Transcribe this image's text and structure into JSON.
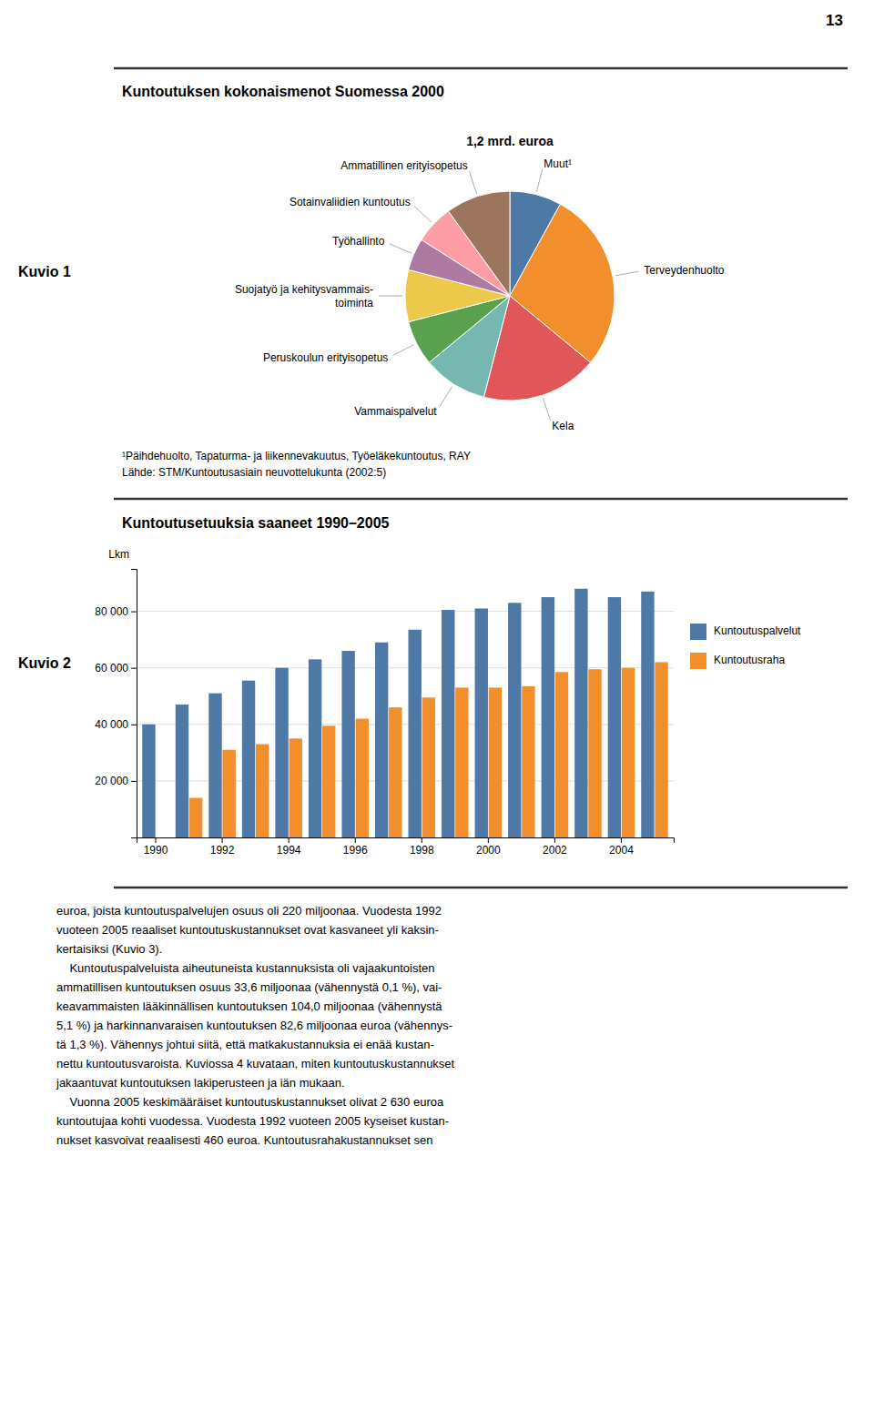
{
  "page_number": "13",
  "chart_data": [
    {
      "type": "pie",
      "title": "Kuntoutuksen kokonaismenot Suomessa 2000",
      "subtitle": "1,2 mrd. euroa",
      "annotations": [
        "Kuvio 1",
        "¹Päihdehuolto, Tapaturma- ja liikennevakuutus, Työeläkekuntoutus, RAY",
        "Lähde: STM/Kuntoutusasiain neuvottelukunta (2002:5)"
      ],
      "categories": [
        "Muut¹",
        "Terveydenhuolto",
        "Kela",
        "Vammaispalvelut",
        "Peruskoulun erityisopetus",
        "Suojatyö ja kehitysvammais-\ntoiminta",
        "Työhallinto",
        "Sotainvaliidien kuntoutus",
        "Ammatillinen erityisopetus"
      ],
      "values": [
        8,
        28,
        18,
        10,
        7,
        8,
        5,
        6,
        10
      ]
    },
    {
      "type": "bar",
      "title": "Kuntoutusetuuksia saaneet 1990–2005",
      "annotations": [
        "Kuvio 2"
      ],
      "ylabel": "Lkm",
      "categories": [
        "1990",
        null,
        "1992",
        null,
        "1994",
        null,
        "1996",
        null,
        "1998",
        null,
        "2000",
        null,
        "2002",
        null,
        "2004",
        null
      ],
      "series": [
        {
          "name": "Kuntoutuspalvelut",
          "values": [
            40000,
            47000,
            51000,
            55500,
            60000,
            63000,
            66000,
            69000,
            73500,
            80500,
            81000,
            83000,
            85000,
            88000,
            85000,
            87000
          ]
        },
        {
          "name": "Kuntoutusraha",
          "values": [
            0,
            14000,
            31000,
            33000,
            35000,
            39500,
            42000,
            46000,
            49500,
            53000,
            53000,
            53500,
            58500,
            59500,
            60000,
            62000
          ]
        }
      ],
      "ylim": [
        0,
        95000
      ],
      "yticks": [
        {
          "value": 20000,
          "label": "20 000"
        },
        {
          "value": 40000,
          "label": "40 000"
        },
        {
          "value": 60000,
          "label": "60 000"
        },
        {
          "value": 80000,
          "label": "80 000"
        }
      ],
      "grid": true,
      "legend": "right"
    }
  ],
  "text": [
    "euroa, joista kuntoutuspalvelujen osuus oli 220 miljoonaa. Vuodesta 1992",
    "vuoteen 2005 reaaliset kuntoutuskustannukset ovat kasvaneet yli kaksin-",
    "kertaisiksi (Kuvio 3).",
    "    Kuntoutuspalveluista aiheutuneista kustannuksista oli vajaakuntoisten",
    "ammatillisen kuntoutuksen osuus 33,6 miljoonaa (vähennystä 0,1 %), vai-",
    "keavammaisten lääkinnällisen kuntoutuksen 104,0 miljoonaa (vähennystä",
    "5,1 %) ja harkinnanvaraisen kuntoutuksen 82,6 miljoonaa euroa (vähennys-",
    "tä 1,3 %). Vähennys johtui siitä, että matkakustannuksia ei enää kustan-",
    "nettu kuntoutusvaroista. Kuviossa 4 kuvataan, miten kuntoutuskustannukset",
    "jakaantuvat kuntoutuksen lakiperusteen ja iän mukaan.",
    "    Vuonna 2005 keskimääräiset kuntoutuskustannukset olivat 2 630 euroa",
    "kuntoutujaa kohti vuodessa. Vuodesta 1992 vuoteen 2005 kyseiset kustan-",
    "nukset kasvoivat reaalisesti 460 euroa. Kuntoutusrahakustannukset sen"
  ]
}
